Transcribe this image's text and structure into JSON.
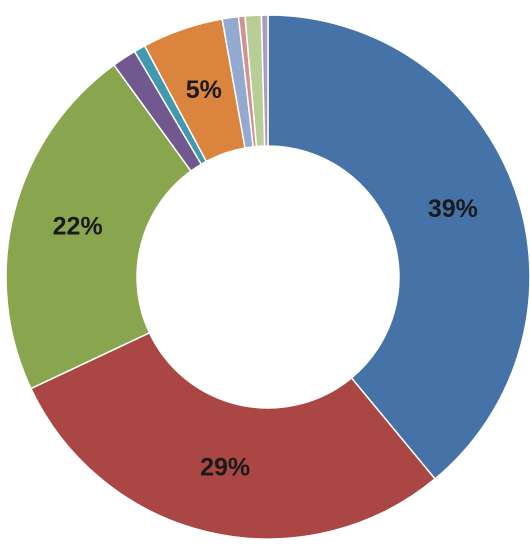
{
  "chart_data": {
    "type": "donut",
    "values": [
      39,
      29,
      22,
      1.5,
      0.7,
      5,
      1,
      0.4,
      1,
      0.4
    ],
    "value_labels": [
      "39%",
      "29%",
      "22%",
      null,
      null,
      "5%",
      null,
      null,
      null,
      null
    ],
    "colors": [
      "#4572a7",
      "#aa4643",
      "#89a54e",
      "#71588f",
      "#4198af",
      "#db843d",
      "#93a9cf",
      "#d19392",
      "#b9cd96",
      "#a99bbd"
    ]
  }
}
